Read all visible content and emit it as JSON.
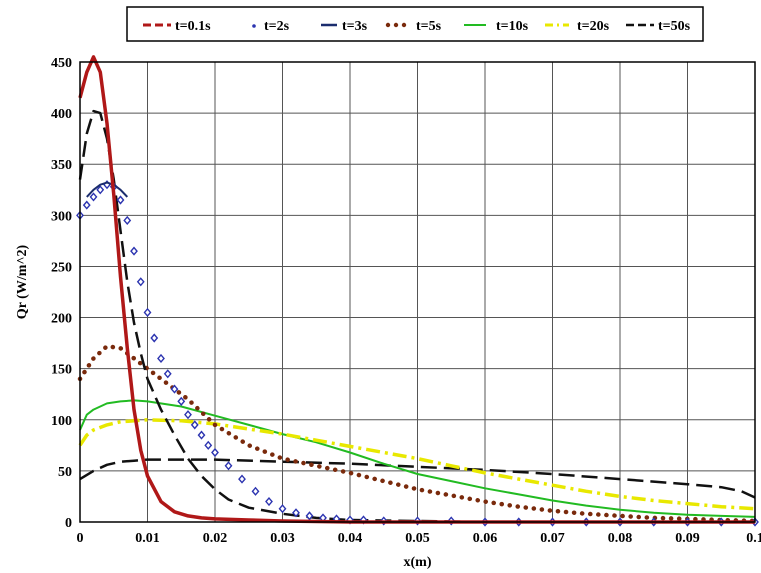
{
  "chart_data": {
    "type": "line",
    "title": "",
    "xlabel": "x(m)",
    "ylabel": "Qr (W/m^2)",
    "xlim": [
      0,
      0.1
    ],
    "ylim": [
      0,
      450
    ],
    "grid": true,
    "legend_position": "top",
    "x_ticks": [
      "0",
      "0.01",
      "0.02",
      "0.03",
      "0.04",
      "0.05",
      "0.06",
      "0.07",
      "0.08",
      "0.09",
      "0.1"
    ],
    "y_ticks": [
      "0",
      "50",
      "100",
      "150",
      "200",
      "250",
      "300",
      "350",
      "400",
      "450"
    ],
    "colors": {
      "t_0_1s": "#b01818",
      "t_2s": "#2c34b0",
      "t_3s": "#1b2d6e",
      "t_5s": "#7a2a0c",
      "t_10s": "#22bb22",
      "t_20s": "#e8e800",
      "t_50s": "#111111"
    },
    "series": [
      {
        "name": "t=0.1s",
        "style": "solid",
        "x": [
          0,
          0.001,
          0.002,
          0.003,
          0.004,
          0.005,
          0.006,
          0.007,
          0.008,
          0.009,
          0.01,
          0.012,
          0.014,
          0.016,
          0.018,
          0.02,
          0.025,
          0.03,
          0.04,
          0.05,
          0.06,
          0.08,
          0.1
        ],
        "y": [
          415,
          440,
          455,
          440,
          390,
          320,
          240,
          170,
          110,
          70,
          45,
          20,
          10,
          6,
          4,
          3,
          2,
          1,
          0,
          0,
          0,
          0,
          0
        ]
      },
      {
        "name": "t=2s",
        "style": "diamond-markers",
        "x": [
          0,
          0.001,
          0.002,
          0.003,
          0.004,
          0.005,
          0.006,
          0.007,
          0.008,
          0.009,
          0.01,
          0.011,
          0.012,
          0.013,
          0.014,
          0.015,
          0.016,
          0.017,
          0.018,
          0.019,
          0.02,
          0.022,
          0.024,
          0.026,
          0.028,
          0.03,
          0.032,
          0.034,
          0.036,
          0.038,
          0.04,
          0.042,
          0.045,
          0.05,
          0.055,
          0.06,
          0.065,
          0.07,
          0.075,
          0.08,
          0.085,
          0.09,
          0.095,
          0.1
        ],
        "y": [
          300,
          310,
          318,
          325,
          330,
          328,
          315,
          295,
          265,
          235,
          205,
          180,
          160,
          145,
          130,
          118,
          105,
          95,
          85,
          75,
          68,
          55,
          42,
          30,
          20,
          13,
          9,
          6,
          4,
          3,
          2,
          2,
          1,
          1,
          1,
          0,
          0,
          0,
          0,
          0,
          0,
          0,
          0,
          0
        ]
      },
      {
        "name": "t=3s",
        "style": "solid",
        "x": [
          0.001,
          0.002,
          0.003,
          0.004,
          0.005,
          0.006,
          0.007
        ],
        "y": [
          318,
          325,
          330,
          332,
          330,
          325,
          318
        ]
      },
      {
        "name": "t=5s",
        "style": "dotted",
        "x": [
          0,
          0.002,
          0.004,
          0.006,
          0.008,
          0.01,
          0.013,
          0.016,
          0.02,
          0.025,
          0.03,
          0.035,
          0.04,
          0.045,
          0.05,
          0.055,
          0.06,
          0.065,
          0.07,
          0.075,
          0.08,
          0.085,
          0.09,
          0.095,
          0.1
        ],
        "y": [
          140,
          160,
          172,
          170,
          160,
          150,
          135,
          120,
          95,
          75,
          62,
          55,
          48,
          40,
          32,
          26,
          20,
          15,
          11,
          8,
          6,
          4,
          3,
          2,
          1
        ]
      },
      {
        "name": "t=10s",
        "style": "solid",
        "x": [
          0,
          0.001,
          0.002,
          0.004,
          0.006,
          0.008,
          0.01,
          0.015,
          0.02,
          0.025,
          0.03,
          0.035,
          0.04,
          0.045,
          0.05,
          0.055,
          0.06,
          0.065,
          0.07,
          0.075,
          0.08,
          0.085,
          0.09,
          0.095,
          0.1
        ],
        "y": [
          90,
          105,
          110,
          116,
          118,
          119,
          118,
          113,
          104,
          95,
          86,
          78,
          68,
          57,
          47,
          40,
          33,
          27,
          21,
          16,
          12,
          9,
          7,
          6,
          5
        ]
      },
      {
        "name": "t=20s",
        "style": "dash-dot",
        "x": [
          0,
          0.001,
          0.002,
          0.004,
          0.006,
          0.008,
          0.01,
          0.015,
          0.02,
          0.025,
          0.03,
          0.035,
          0.04,
          0.045,
          0.05,
          0.055,
          0.06,
          0.065,
          0.07,
          0.075,
          0.08,
          0.085,
          0.09,
          0.095,
          0.1
        ],
        "y": [
          75,
          85,
          90,
          95,
          98,
          99,
          100,
          99,
          96,
          91,
          86,
          80,
          74,
          68,
          62,
          55,
          48,
          42,
          36,
          30,
          25,
          21,
          18,
          15,
          13
        ]
      },
      {
        "name": "t=50s",
        "style": "dashed",
        "x": [
          0,
          0.002,
          0.004,
          0.006,
          0.008,
          0.01,
          0.015,
          0.02,
          0.03,
          0.04,
          0.05,
          0.06,
          0.07,
          0.08,
          0.09,
          0.095,
          0.098,
          0.1
        ],
        "y": [
          42,
          50,
          56,
          59,
          60,
          61,
          61,
          61,
          59,
          57,
          54,
          51,
          47,
          42,
          37,
          34,
          30,
          24
        ]
      },
      {
        "name": "",
        "style": "dashed",
        "x": [
          0,
          0.001,
          0.002,
          0.003,
          0.004,
          0.005,
          0.006,
          0.007,
          0.008,
          0.009,
          0.01,
          0.012,
          0.014,
          0.016,
          0.018,
          0.02,
          0.022,
          0.025,
          0.03,
          0.035,
          0.04,
          0.05,
          0.06,
          0.08,
          0.1
        ],
        "y": [
          335,
          380,
          402,
          400,
          375,
          335,
          285,
          235,
          195,
          165,
          140,
          110,
          85,
          62,
          45,
          32,
          22,
          14,
          8,
          4,
          2,
          1,
          0,
          0,
          0
        ]
      }
    ]
  }
}
